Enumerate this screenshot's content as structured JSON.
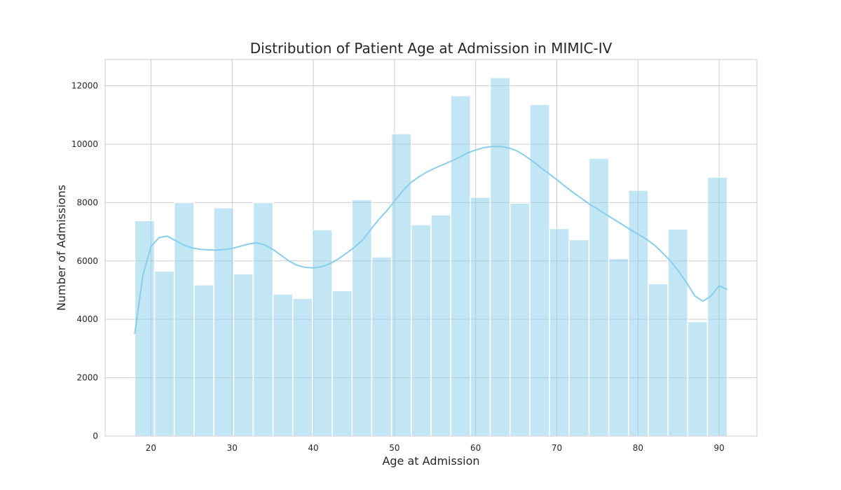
{
  "chart_data": {
    "type": "histogram",
    "title": "Distribution of Patient Age at Admission in MIMIC-IV",
    "xlabel": "Age at Admission",
    "ylabel": "Number of Admissions",
    "xlim": [
      14.35,
      94.65
    ],
    "ylim": [
      0,
      12900
    ],
    "grid": true,
    "x_ticks": [
      20,
      30,
      40,
      50,
      60,
      70,
      80,
      90
    ],
    "y_ticks": [
      0,
      2000,
      4000,
      6000,
      8000,
      10000,
      12000
    ],
    "bin_start": 18,
    "bin_width": 2.4333,
    "bar_color": "#87CEEB",
    "kde_color": "#87CEEB",
    "values": [
      7380,
      5650,
      8000,
      5180,
      7820,
      5560,
      8000,
      4860,
      4720,
      7070,
      4980,
      8100,
      6140,
      10360,
      7240,
      7580,
      11660,
      8180,
      12280,
      7980,
      11360,
      7110,
      6730,
      9520,
      6080,
      8420,
      5220,
      7090,
      3920,
      8870
    ],
    "kde": {
      "x": [
        18,
        19,
        20,
        21,
        22,
        23,
        24,
        25,
        26,
        27,
        28,
        29,
        30,
        31,
        32,
        33,
        34,
        35,
        36,
        37,
        38,
        39,
        40,
        41,
        42,
        43,
        44,
        45,
        46,
        47,
        48,
        49,
        50,
        51,
        52,
        53,
        54,
        55,
        56,
        57,
        58,
        59,
        60,
        61,
        62,
        63,
        64,
        65,
        66,
        67,
        68,
        69,
        70,
        71,
        72,
        73,
        74,
        75,
        76,
        77,
        78,
        79,
        80,
        81,
        82,
        83,
        84,
        85,
        86,
        87,
        88,
        89,
        90,
        91
      ],
      "y": [
        3500,
        5500,
        6500,
        6800,
        6850,
        6700,
        6550,
        6450,
        6400,
        6380,
        6370,
        6390,
        6430,
        6500,
        6580,
        6620,
        6550,
        6400,
        6200,
        6000,
        5850,
        5780,
        5760,
        5800,
        5900,
        6050,
        6250,
        6450,
        6700,
        7050,
        7400,
        7700,
        8050,
        8400,
        8680,
        8880,
        9050,
        9180,
        9300,
        9420,
        9550,
        9700,
        9800,
        9880,
        9920,
        9920,
        9880,
        9780,
        9620,
        9420,
        9200,
        9000,
        8780,
        8560,
        8350,
        8150,
        7950,
        7780,
        7600,
        7430,
        7260,
        7080,
        6920,
        6750,
        6550,
        6280,
        6000,
        5650,
        5250,
        4800,
        4620,
        4800,
        5150,
        5020
      ]
    }
  }
}
